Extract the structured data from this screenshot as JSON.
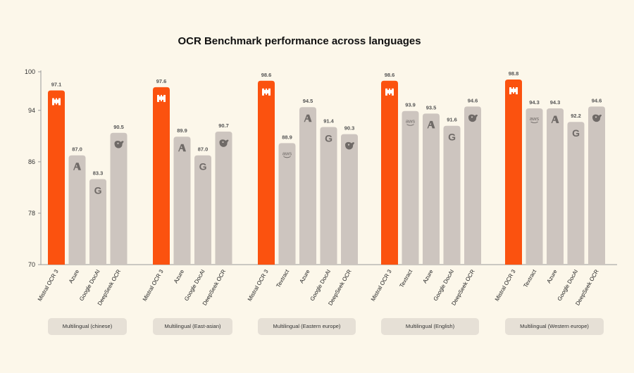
{
  "chart_data": {
    "type": "bar",
    "title": "OCR Benchmark performance across languages",
    "ylim": [
      70,
      100
    ],
    "yticks": [
      "70",
      "78",
      "86",
      "94",
      "100"
    ],
    "grid": false,
    "colors": {
      "mistral": "#fb520f",
      "other": "#cdc5bf",
      "axis": "#999999",
      "text": "#555555"
    },
    "groups": [
      {
        "name": "Multilingual (chinese)",
        "bars": [
          {
            "label": "Mistral OCR 3",
            "value": 97.1,
            "value_label": "97.1",
            "icon": "mistral-logo-icon"
          },
          {
            "label": "Azure",
            "value": 87.0,
            "value_label": "87.0",
            "icon": "azure-logo-icon"
          },
          {
            "label": "Google DocAI",
            "value": 83.3,
            "value_label": "83.3",
            "icon": "google-logo-icon"
          },
          {
            "label": "DeepSeek OCR",
            "value": 90.5,
            "value_label": "90.5",
            "icon": "deepseek-logo-icon"
          }
        ]
      },
      {
        "name": "Multilingual (East-asian)",
        "bars": [
          {
            "label": "Mistral OCR 3",
            "value": 97.6,
            "value_label": "97.6",
            "icon": "mistral-logo-icon"
          },
          {
            "label": "Azure",
            "value": 89.9,
            "value_label": "89.9",
            "icon": "azure-logo-icon"
          },
          {
            "label": "Google DocAI",
            "value": 87.0,
            "value_label": "87.0",
            "icon": "google-logo-icon"
          },
          {
            "label": "DeepSeek OCR",
            "value": 90.7,
            "value_label": "90.7",
            "icon": "deepseek-logo-icon"
          }
        ]
      },
      {
        "name": "Multilingual (Eastern europe)",
        "bars": [
          {
            "label": "Mistral OCR 3",
            "value": 98.6,
            "value_label": "98.6",
            "icon": "mistral-logo-icon"
          },
          {
            "label": "Textract",
            "value": 88.9,
            "value_label": "88.9",
            "icon": "aws-logo-icon"
          },
          {
            "label": "Azure",
            "value": 94.5,
            "value_label": "94.5",
            "icon": "azure-logo-icon"
          },
          {
            "label": "Google DocAI",
            "value": 91.4,
            "value_label": "91.4",
            "icon": "google-logo-icon"
          },
          {
            "label": "DeepSeek OCR",
            "value": 90.3,
            "value_label": "90.3",
            "icon": "deepseek-logo-icon"
          }
        ]
      },
      {
        "name": "Multilingual (English)",
        "bars": [
          {
            "label": "Mistral OCR 3",
            "value": 98.6,
            "value_label": "98.6",
            "icon": "mistral-logo-icon"
          },
          {
            "label": "Textract",
            "value": 93.9,
            "value_label": "93.9",
            "icon": "aws-logo-icon"
          },
          {
            "label": "Azure",
            "value": 93.5,
            "value_label": "93.5",
            "icon": "azure-logo-icon"
          },
          {
            "label": "Google DocAI",
            "value": 91.6,
            "value_label": "91.6",
            "icon": "google-logo-icon"
          },
          {
            "label": "DeepSeek OCR",
            "value": 94.6,
            "value_label": "94.6",
            "icon": "deepseek-logo-icon"
          }
        ]
      },
      {
        "name": "Multilingual (Western europe)",
        "bars": [
          {
            "label": "Mistral OCR 3",
            "value": 98.8,
            "value_label": "98.8",
            "icon": "mistral-logo-icon"
          },
          {
            "label": "Textract",
            "value": 94.3,
            "value_label": "94.3",
            "icon": "aws-logo-icon"
          },
          {
            "label": "Azure",
            "value": 94.3,
            "value_label": "94.3",
            "icon": "azure-logo-icon"
          },
          {
            "label": "Google DocAI",
            "value": 92.2,
            "value_label": "92.2",
            "icon": "google-logo-icon"
          },
          {
            "label": "DeepSeek OCR",
            "value": 94.6,
            "value_label": "94.6",
            "icon": "deepseek-logo-icon"
          }
        ]
      }
    ]
  },
  "icon_text": {
    "aws": "aws",
    "google": "G"
  }
}
